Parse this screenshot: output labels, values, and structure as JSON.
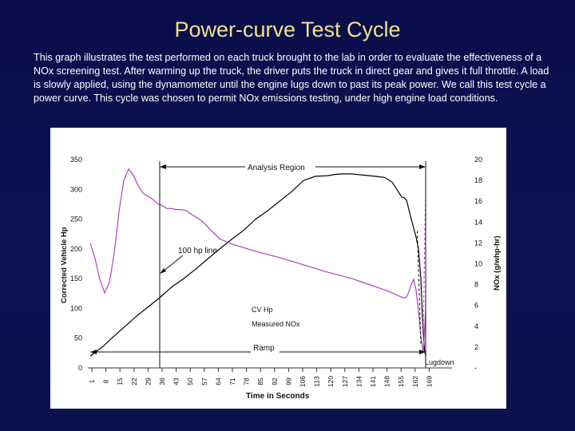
{
  "slide": {
    "title": "Power-curve Test Cycle",
    "description": "This graph illustrates the test performed on each truck brought to the lab in order to evaluate the effectiveness of a NOx screening test.  After warming up the truck, the driver puts the truck in direct gear and gives it full throttle.  A load is slowly applied, using the dynamometer until the engine lugs down to past its peak power.  We call this test cycle a power curve.  This cycle was chosen to permit NOx emissions testing, under high engine load conditions."
  },
  "colors": {
    "background": "#0b1050",
    "title": "#f5e08a",
    "hp_line": "#000000",
    "nox_line": "#b040c0"
  },
  "chart_data": {
    "type": "line",
    "title": "",
    "xlabel": "Time in Seconds",
    "ylabel": "Corrected Vehicle Hp",
    "y2label": "NOx (g/whp-hr)",
    "xlim": [
      1,
      141
    ],
    "ylim": [
      0,
      350
    ],
    "y2lim": [
      0,
      20
    ],
    "x_ticks": [
      "1",
      "8",
      "15",
      "22",
      "29",
      "36",
      "43",
      "50",
      "57",
      "64",
      "71",
      "78",
      "85",
      "92",
      "99",
      "106",
      "113",
      "120",
      "127",
      "134",
      "141",
      "148",
      "155",
      "162",
      "169"
    ],
    "y_ticks": [
      0,
      50,
      100,
      150,
      200,
      250,
      300,
      350
    ],
    "y2_ticks": [
      "-",
      "2",
      "4",
      "6",
      "8",
      "10",
      "12",
      "14",
      "16",
      "18",
      "20"
    ],
    "grid": false,
    "series": [
      {
        "name": "CV Hp",
        "axis": "left",
        "x": [
          1,
          3,
          6,
          10,
          15,
          20,
          25,
          30,
          35,
          40,
          45,
          50,
          55,
          60,
          65,
          70,
          75,
          80,
          85,
          90,
          95,
          100,
          103,
          106,
          110,
          115,
          120,
          124,
          127,
          129,
          131,
          132,
          133,
          135,
          137,
          138,
          139,
          139.5,
          140,
          140.5,
          141
        ],
        "values": [
          20,
          26,
          35,
          50,
          68,
          86,
          102,
          118,
          136,
          150,
          166,
          183,
          200,
          216,
          231,
          250,
          264,
          280,
          296,
          315,
          322,
          323,
          325,
          326,
          326,
          324,
          322,
          320,
          312,
          300,
          287,
          286,
          282,
          250,
          220,
          200,
          150,
          100,
          60,
          30,
          20
        ]
      },
      {
        "name": "Measured NOx",
        "axis": "right",
        "x": [
          1,
          3,
          5,
          7,
          9,
          11,
          13,
          15,
          17,
          19,
          21,
          23,
          25,
          27,
          29,
          31,
          33,
          35,
          37,
          39,
          41,
          43,
          45,
          47,
          49,
          51,
          55,
          60,
          70,
          80,
          90,
          100,
          110,
          115,
          120,
          125,
          128,
          130,
          132,
          133,
          134,
          135,
          136,
          137,
          138,
          139,
          140,
          141
        ],
        "values": [
          12.0,
          10.5,
          8.5,
          7.2,
          8.2,
          11.0,
          15.0,
          18.0,
          19.1,
          18.5,
          17.5,
          16.8,
          16.5,
          16.2,
          15.8,
          15.6,
          15.3,
          15.3,
          15.2,
          15.2,
          15.1,
          14.8,
          14.5,
          14.2,
          13.8,
          13.3,
          12.4,
          11.9,
          11.2,
          10.6,
          9.9,
          9.2,
          8.6,
          8.2,
          7.8,
          7.4,
          7.1,
          6.9,
          6.7,
          6.8,
          7.3,
          8.0,
          8.5,
          7.5,
          5.5,
          3.0,
          1.5,
          5.5
        ]
      }
    ],
    "annotations": {
      "analysis_region": "Analysis Region",
      "hp_line": "100 hp line",
      "cv_hp": "CV Hp",
      "measured_nox": "Measured NOx",
      "ramp": "Ramp",
      "lugdown": "Lugdown"
    }
  }
}
